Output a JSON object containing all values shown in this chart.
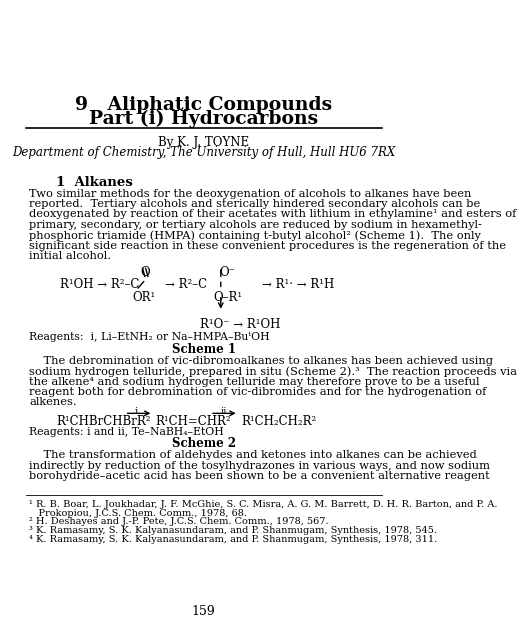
{
  "title_line1": "9   Aliphatic Compounds",
  "title_line2": "Part (i) Hydrocarbons",
  "author": "By K. J. TOYNE",
  "affiliation": "Department of Chemistry, The University of Hull, Hull HU6 7RX",
  "section1_title": "1  Alkanes",
  "reagents1": "Reagents:  i, Li–EtNH₂ or Na–HMPA–BuᵗOH",
  "scheme1_label": "Scheme 1",
  "reagents2": "Reagents: i and ii, Te–NaBH₄–EtOH",
  "scheme2_label": "Scheme 2",
  "footnotes": [
    "¹ R. B. Boar, L. Joukhadar, J. F. McGhie, S. C. Misra, A. G. M. Barrett, D. H. R. Barton, and P. A.",
    "   Prokopiou, J.C.S. Chem. Comm., 1978, 68.",
    "² H. Deshayes and J.-P. Pete, J.C.S. Chem. Comm., 1978, 567.",
    "³ K. Ramasamy, S. K. Kalyanasundaram, and P. Shanmugam, Synthesis, 1978, 545.",
    "⁴ K. Ramasamy, S. K. Kalyanasundaram, and P. Shanmugam, Synthesis, 1978, 311."
  ],
  "page_number": "159",
  "bg_color": "#ffffff",
  "text_color": "#000000"
}
